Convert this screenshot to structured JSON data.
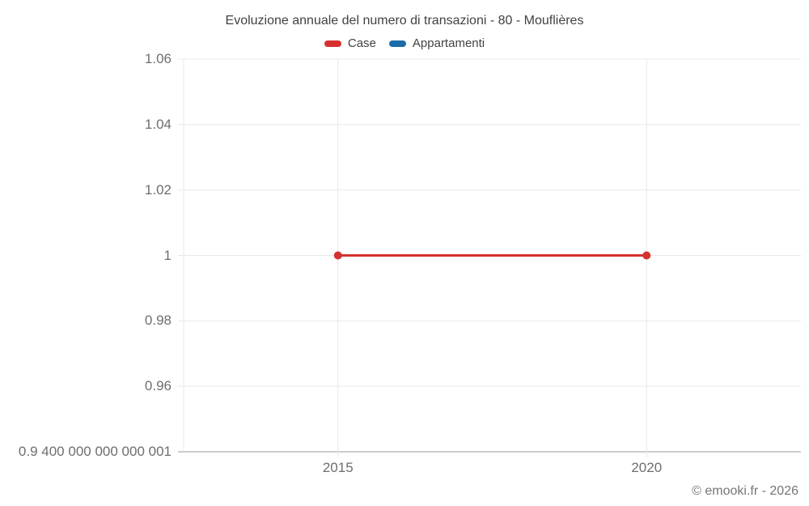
{
  "title": "Evoluzione annuale del numero di transazioni - 80 - Mouflières",
  "footer": "© emooki.fr - 2026",
  "chart_data": {
    "type": "line",
    "title": "Evoluzione annuale del numero di transazioni - 80 - Mouflières",
    "x": [
      2015,
      2020
    ],
    "series": [
      {
        "name": "Case",
        "color": "#d5322f",
        "values": [
          1,
          1
        ],
        "marker": "circle"
      },
      {
        "name": "Appartamenti",
        "color": "#1b6ca8",
        "values": []
      }
    ],
    "xlim": [
      2012.5,
      2022.5
    ],
    "ylim": [
      0.94,
      1.06
    ],
    "xticks": [
      {
        "value": 2015,
        "label": "2015"
      },
      {
        "value": 2020,
        "label": "2020"
      }
    ],
    "yticks": [
      {
        "value": 1.06,
        "label": "1.06"
      },
      {
        "value": 1.04,
        "label": "1.04"
      },
      {
        "value": 1.02,
        "label": "1.02"
      },
      {
        "value": 1,
        "label": "1"
      },
      {
        "value": 0.98,
        "label": "0.98"
      },
      {
        "value": 0.96,
        "label": "0.96"
      },
      {
        "value": 0.94,
        "label": "0.9 400 000 000 000 001"
      }
    ],
    "grid": true,
    "legend_position": "top",
    "colors": {
      "grid": "#e8e8e8",
      "axis": "#cccccc",
      "tick_text": "#6e6e6e",
      "title_text": "#424242"
    }
  }
}
